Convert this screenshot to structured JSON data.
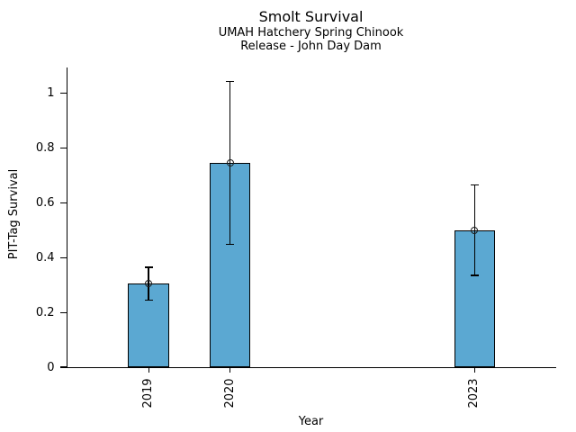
{
  "figure": {
    "background": "#ffffff"
  },
  "chart_data": {
    "type": "bar",
    "title": "Smolt Survival",
    "subtitle_lines": [
      "UMAH Hatchery Spring Chinook",
      "Release - John Day Dam"
    ],
    "xlabel": "Year",
    "ylabel": "PIT-Tag Survival",
    "categories": [
      "2019",
      "2020",
      "2023"
    ],
    "x": [
      2019,
      2020,
      2023
    ],
    "values": [
      0.305,
      0.745,
      0.5
    ],
    "error_low": [
      0.245,
      0.45,
      0.335
    ],
    "error_high": [
      0.365,
      1.045,
      0.665
    ],
    "bar_width": 0.5,
    "xlim": [
      2018,
      2024
    ],
    "ylim": [
      0,
      1.095
    ],
    "yticks": [
      0,
      0.2,
      0.4,
      0.6,
      0.8,
      1
    ],
    "ytick_labels": [
      "0",
      "0.2",
      "0.4",
      "0.6",
      "0.8",
      "1"
    ],
    "bar_color": "#5BA8D2",
    "edge_color": "#000000",
    "error_color": "#000000",
    "marker": "open-circle",
    "grid": false,
    "legend": null
  }
}
